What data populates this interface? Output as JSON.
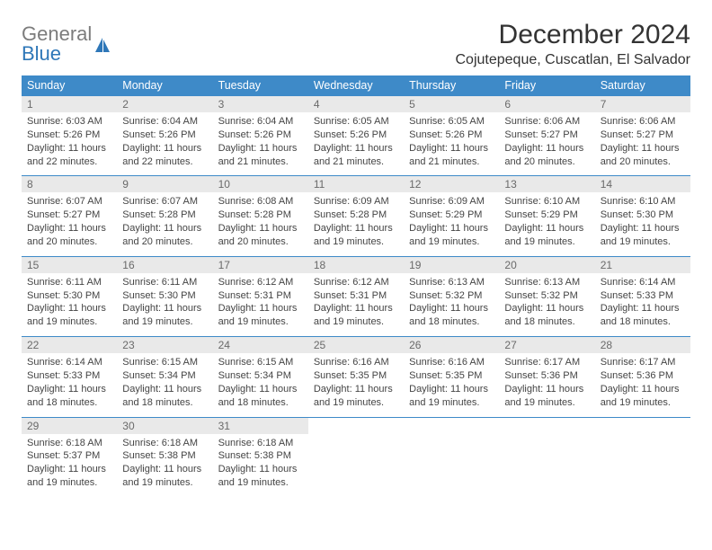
{
  "brand": {
    "word1": "General",
    "word2": "Blue"
  },
  "title": "December 2024",
  "location": "Cojutepeque, Cuscatlan, El Salvador",
  "colors": {
    "header_bg": "#3e8ac8",
    "header_text": "#ffffff",
    "daynum_bg": "#e9e9e9",
    "daynum_text": "#6a6a6a",
    "border": "#3e8ac8",
    "body_text": "#444444",
    "logo_gray": "#7c7c7c",
    "logo_blue": "#2e77b8"
  },
  "weekdays": [
    "Sunday",
    "Monday",
    "Tuesday",
    "Wednesday",
    "Thursday",
    "Friday",
    "Saturday"
  ],
  "weeks": [
    [
      {
        "n": "1",
        "sunrise": "Sunrise: 6:03 AM",
        "sunset": "Sunset: 5:26 PM",
        "daylight": "Daylight: 11 hours and 22 minutes."
      },
      {
        "n": "2",
        "sunrise": "Sunrise: 6:04 AM",
        "sunset": "Sunset: 5:26 PM",
        "daylight": "Daylight: 11 hours and 22 minutes."
      },
      {
        "n": "3",
        "sunrise": "Sunrise: 6:04 AM",
        "sunset": "Sunset: 5:26 PM",
        "daylight": "Daylight: 11 hours and 21 minutes."
      },
      {
        "n": "4",
        "sunrise": "Sunrise: 6:05 AM",
        "sunset": "Sunset: 5:26 PM",
        "daylight": "Daylight: 11 hours and 21 minutes."
      },
      {
        "n": "5",
        "sunrise": "Sunrise: 6:05 AM",
        "sunset": "Sunset: 5:26 PM",
        "daylight": "Daylight: 11 hours and 21 minutes."
      },
      {
        "n": "6",
        "sunrise": "Sunrise: 6:06 AM",
        "sunset": "Sunset: 5:27 PM",
        "daylight": "Daylight: 11 hours and 20 minutes."
      },
      {
        "n": "7",
        "sunrise": "Sunrise: 6:06 AM",
        "sunset": "Sunset: 5:27 PM",
        "daylight": "Daylight: 11 hours and 20 minutes."
      }
    ],
    [
      {
        "n": "8",
        "sunrise": "Sunrise: 6:07 AM",
        "sunset": "Sunset: 5:27 PM",
        "daylight": "Daylight: 11 hours and 20 minutes."
      },
      {
        "n": "9",
        "sunrise": "Sunrise: 6:07 AM",
        "sunset": "Sunset: 5:28 PM",
        "daylight": "Daylight: 11 hours and 20 minutes."
      },
      {
        "n": "10",
        "sunrise": "Sunrise: 6:08 AM",
        "sunset": "Sunset: 5:28 PM",
        "daylight": "Daylight: 11 hours and 20 minutes."
      },
      {
        "n": "11",
        "sunrise": "Sunrise: 6:09 AM",
        "sunset": "Sunset: 5:28 PM",
        "daylight": "Daylight: 11 hours and 19 minutes."
      },
      {
        "n": "12",
        "sunrise": "Sunrise: 6:09 AM",
        "sunset": "Sunset: 5:29 PM",
        "daylight": "Daylight: 11 hours and 19 minutes."
      },
      {
        "n": "13",
        "sunrise": "Sunrise: 6:10 AM",
        "sunset": "Sunset: 5:29 PM",
        "daylight": "Daylight: 11 hours and 19 minutes."
      },
      {
        "n": "14",
        "sunrise": "Sunrise: 6:10 AM",
        "sunset": "Sunset: 5:30 PM",
        "daylight": "Daylight: 11 hours and 19 minutes."
      }
    ],
    [
      {
        "n": "15",
        "sunrise": "Sunrise: 6:11 AM",
        "sunset": "Sunset: 5:30 PM",
        "daylight": "Daylight: 11 hours and 19 minutes."
      },
      {
        "n": "16",
        "sunrise": "Sunrise: 6:11 AM",
        "sunset": "Sunset: 5:30 PM",
        "daylight": "Daylight: 11 hours and 19 minutes."
      },
      {
        "n": "17",
        "sunrise": "Sunrise: 6:12 AM",
        "sunset": "Sunset: 5:31 PM",
        "daylight": "Daylight: 11 hours and 19 minutes."
      },
      {
        "n": "18",
        "sunrise": "Sunrise: 6:12 AM",
        "sunset": "Sunset: 5:31 PM",
        "daylight": "Daylight: 11 hours and 19 minutes."
      },
      {
        "n": "19",
        "sunrise": "Sunrise: 6:13 AM",
        "sunset": "Sunset: 5:32 PM",
        "daylight": "Daylight: 11 hours and 18 minutes."
      },
      {
        "n": "20",
        "sunrise": "Sunrise: 6:13 AM",
        "sunset": "Sunset: 5:32 PM",
        "daylight": "Daylight: 11 hours and 18 minutes."
      },
      {
        "n": "21",
        "sunrise": "Sunrise: 6:14 AM",
        "sunset": "Sunset: 5:33 PM",
        "daylight": "Daylight: 11 hours and 18 minutes."
      }
    ],
    [
      {
        "n": "22",
        "sunrise": "Sunrise: 6:14 AM",
        "sunset": "Sunset: 5:33 PM",
        "daylight": "Daylight: 11 hours and 18 minutes."
      },
      {
        "n": "23",
        "sunrise": "Sunrise: 6:15 AM",
        "sunset": "Sunset: 5:34 PM",
        "daylight": "Daylight: 11 hours and 18 minutes."
      },
      {
        "n": "24",
        "sunrise": "Sunrise: 6:15 AM",
        "sunset": "Sunset: 5:34 PM",
        "daylight": "Daylight: 11 hours and 18 minutes."
      },
      {
        "n": "25",
        "sunrise": "Sunrise: 6:16 AM",
        "sunset": "Sunset: 5:35 PM",
        "daylight": "Daylight: 11 hours and 19 minutes."
      },
      {
        "n": "26",
        "sunrise": "Sunrise: 6:16 AM",
        "sunset": "Sunset: 5:35 PM",
        "daylight": "Daylight: 11 hours and 19 minutes."
      },
      {
        "n": "27",
        "sunrise": "Sunrise: 6:17 AM",
        "sunset": "Sunset: 5:36 PM",
        "daylight": "Daylight: 11 hours and 19 minutes."
      },
      {
        "n": "28",
        "sunrise": "Sunrise: 6:17 AM",
        "sunset": "Sunset: 5:36 PM",
        "daylight": "Daylight: 11 hours and 19 minutes."
      }
    ],
    [
      {
        "n": "29",
        "sunrise": "Sunrise: 6:18 AM",
        "sunset": "Sunset: 5:37 PM",
        "daylight": "Daylight: 11 hours and 19 minutes."
      },
      {
        "n": "30",
        "sunrise": "Sunrise: 6:18 AM",
        "sunset": "Sunset: 5:38 PM",
        "daylight": "Daylight: 11 hours and 19 minutes."
      },
      {
        "n": "31",
        "sunrise": "Sunrise: 6:18 AM",
        "sunset": "Sunset: 5:38 PM",
        "daylight": "Daylight: 11 hours and 19 minutes."
      },
      null,
      null,
      null,
      null
    ]
  ]
}
